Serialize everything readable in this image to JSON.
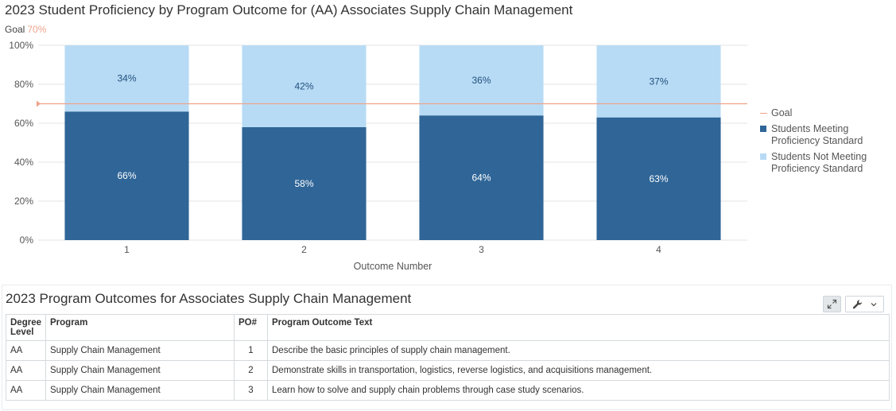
{
  "chart_data": {
    "type": "bar",
    "stacked": true,
    "title": "2023 Student Proficiency by Program Outcome for (AA) Associates Supply Chain Management",
    "goal_label": "Goal",
    "goal_value_label": "70%",
    "goal": 70,
    "categories": [
      "1",
      "2",
      "3",
      "4"
    ],
    "series": [
      {
        "name": "Students Meeting Proficiency Standard",
        "values": [
          66,
          58,
          64,
          63
        ],
        "labels": [
          "66%",
          "58%",
          "64%",
          "63%"
        ],
        "color": "#2f6597"
      },
      {
        "name": "Students Not Meeting Proficiency Standard",
        "values": [
          34,
          42,
          36,
          37
        ],
        "labels": [
          "34%",
          "42%",
          "36%",
          "37%"
        ],
        "color": "#b8dbf5"
      }
    ],
    "xlabel": "Outcome Number",
    "ylabel": "",
    "ylim": [
      0,
      100
    ],
    "yticks": [
      "0%",
      "20%",
      "40%",
      "60%",
      "80%",
      "100%"
    ],
    "goal_color": "#f0a38a",
    "grid": true,
    "legend_position": "right",
    "legend": [
      "Goal",
      "Students Meeting Proficiency Standard",
      "Students Not Meeting Proficiency Standard"
    ]
  },
  "table": {
    "title": "2023 Program Outcomes for Associates Supply Chain Management",
    "headers": [
      "Degree Level",
      "Program",
      "PO#",
      "Program Outcome Text"
    ],
    "rows": [
      [
        "AA",
        "Supply Chain Management",
        "1",
        "Describe the basic principles of supply chain management."
      ],
      [
        "AA",
        "Supply Chain Management",
        "2",
        "Demonstrate skills in transportation, logistics, reverse logistics, and acquisitions management."
      ],
      [
        "AA",
        "Supply Chain Management",
        "3",
        "Learn how to solve and supply chain problems through case study scenarios."
      ]
    ]
  },
  "toolbar": {
    "expand_icon": "expand-icon",
    "tools_icon": "wrench-icon",
    "dropdown_icon": "chevron-down-icon"
  }
}
